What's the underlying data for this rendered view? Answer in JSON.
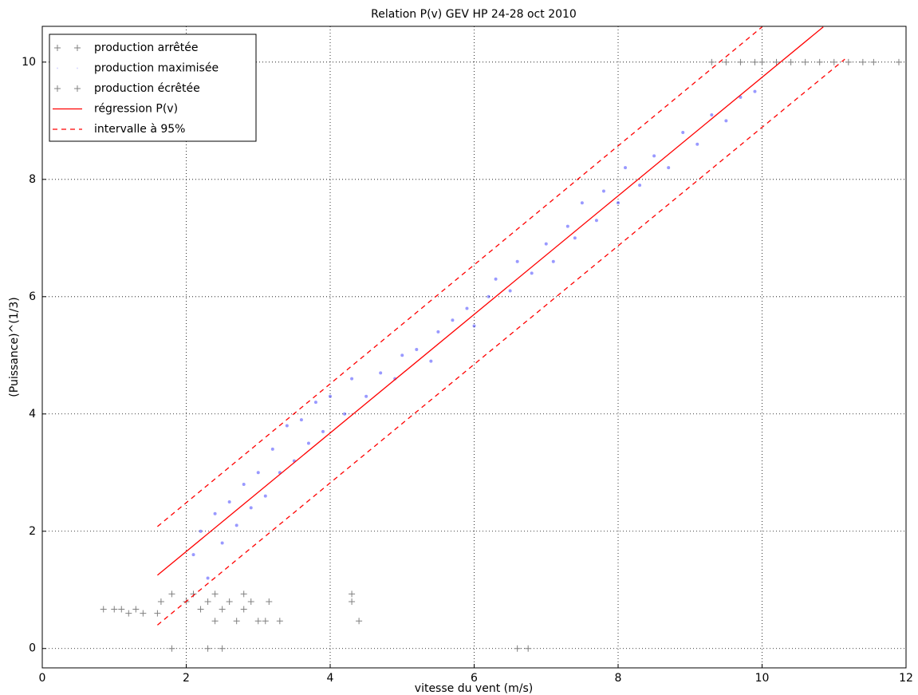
{
  "chart_data": {
    "type": "scatter",
    "title": "Relation P(v) GEV HP 24-28 oct 2010",
    "x_label": "vitesse du vent (m/s)",
    "y_label": "(Puissance)^(1/3)",
    "xlim": [
      0,
      12
    ],
    "ylim": [
      -0.33,
      10.61
    ],
    "xticks": [
      0,
      2,
      4,
      6,
      8,
      10,
      12
    ],
    "yticks": [
      0,
      2,
      4,
      6,
      8,
      10
    ],
    "grid": true,
    "legend": "upper-left",
    "series": [
      {
        "name": "production arrêtée",
        "style": "plus",
        "color": "#808080",
        "x": [
          0.85,
          1.0,
          1.1,
          1.2,
          1.3,
          1.4,
          1.6,
          1.65,
          1.8,
          1.8,
          2.0,
          2.1,
          2.2,
          2.3,
          2.3,
          2.4,
          2.4,
          2.5,
          2.5,
          2.6,
          2.7,
          2.8,
          2.8,
          2.9,
          3.0,
          3.1,
          3.15,
          3.3,
          4.3,
          4.3,
          4.4,
          6.6,
          6.75
        ],
        "values": [
          0.67,
          0.67,
          0.67,
          0.6,
          0.67,
          0.6,
          0.6,
          0.8,
          0.93,
          0,
          0.8,
          0.93,
          0.67,
          0.8,
          0,
          0.93,
          0.47,
          0.67,
          0,
          0.8,
          0.47,
          0.93,
          0.67,
          0.8,
          0.47,
          0.47,
          0.8,
          0.47,
          0.93,
          0.8,
          0.47,
          0,
          0
        ]
      },
      {
        "name": "production maximisée",
        "style": "dot",
        "color": "#0000ff",
        "x": [
          2.1,
          2.2,
          2.3,
          2.4,
          2.5,
          2.6,
          2.7,
          2.8,
          2.9,
          3.0,
          3.1,
          3.2,
          3.3,
          3.4,
          3.5,
          3.6,
          3.7,
          3.8,
          3.9,
          4.0,
          4.2,
          4.3,
          4.5,
          4.7,
          4.9,
          5.0,
          5.2,
          5.4,
          5.5,
          5.7,
          5.9,
          6.0,
          6.2,
          6.3,
          6.5,
          6.6,
          6.8,
          7.0,
          7.1,
          7.3,
          7.4,
          7.5,
          7.7,
          7.8,
          8.0,
          8.1,
          8.3,
          8.5,
          8.7,
          8.9,
          9.1,
          9.3,
          9.5,
          9.7,
          9.9
        ],
        "values": [
          1.6,
          2.0,
          1.2,
          2.3,
          1.8,
          2.5,
          2.1,
          2.8,
          2.4,
          3.0,
          2.6,
          3.4,
          3.0,
          3.8,
          3.2,
          3.9,
          3.5,
          4.2,
          3.7,
          4.3,
          4.0,
          4.6,
          4.3,
          4.7,
          4.6,
          5.0,
          5.1,
          4.9,
          5.4,
          5.6,
          5.8,
          5.5,
          6.0,
          6.3,
          6.1,
          6.6,
          6.4,
          6.9,
          6.6,
          7.2,
          7.0,
          7.6,
          7.3,
          7.8,
          7.6,
          8.2,
          7.9,
          8.4,
          8.2,
          8.8,
          8.6,
          9.1,
          9.0,
          9.4,
          9.5
        ]
      },
      {
        "name": "production écrêtée",
        "style": "plus",
        "color": "#808080",
        "x": [
          9.3,
          9.5,
          9.7,
          9.9,
          10.0,
          10.2,
          10.4,
          10.6,
          10.8,
          11.0,
          11.2,
          11.4,
          11.55,
          11.9
        ],
        "values": [
          10,
          10,
          10,
          10,
          10,
          10,
          10,
          10,
          10,
          10,
          10,
          10,
          10,
          10
        ]
      },
      {
        "name": "régression P(v)",
        "style": "line",
        "color": "#ff0000",
        "x": [
          1.6,
          10.85
        ],
        "values": [
          1.25,
          10.6
        ]
      },
      {
        "name": "intervalle à 95%",
        "style": "dashed",
        "color": "#ff0000",
        "x": [
          1.6,
          10.0,
          null,
          1.6,
          11.15
        ],
        "values": [
          2.08,
          10.6,
          null,
          0.4,
          10.05
        ]
      }
    ]
  }
}
